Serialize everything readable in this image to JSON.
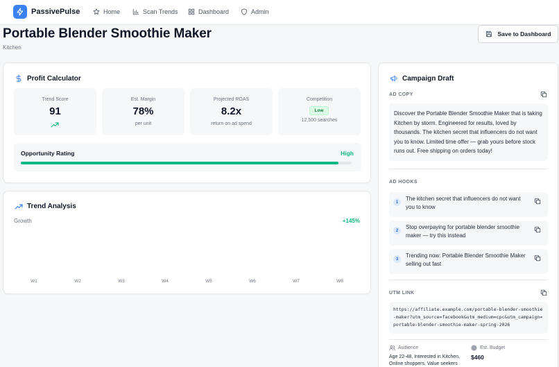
{
  "app": {
    "name": "PassivePulse",
    "accent": "#3b82f6"
  },
  "nav": {
    "items": [
      {
        "label": "Home",
        "icon": "home-icon"
      },
      {
        "label": "Scan Trends",
        "icon": "bar-chart-icon"
      },
      {
        "label": "Dashboard",
        "icon": "dashboard-icon"
      },
      {
        "label": "Admin",
        "icon": "shield-icon"
      }
    ]
  },
  "header": {
    "title": "Portable Blender Smoothie Maker",
    "category": "Kitchen",
    "save_label": "Save to Dashboard"
  },
  "profit": {
    "title": "Profit Calculator",
    "metrics": [
      {
        "label": "Trend Score",
        "value": "91"
      },
      {
        "label": "Est. Margin",
        "value": "78%",
        "sub": "per unit"
      },
      {
        "label": "Projected ROAS",
        "value": "8.2x",
        "sub": "return on ad spend"
      },
      {
        "label": "Competition",
        "badge": "Low",
        "sub": "12,500 searches"
      }
    ],
    "opportunity": {
      "label": "Opportunity Rating",
      "value": "High",
      "fill_percent": 96,
      "color": "#10b981"
    }
  },
  "trend": {
    "title": "Trend Analysis",
    "growth_label": "Growth",
    "growth_value": "+145%",
    "weeks": [
      "W1",
      "W2",
      "W3",
      "W4",
      "W5",
      "W6",
      "W7",
      "W8"
    ]
  },
  "campaign": {
    "title": "Campaign Draft",
    "ad_copy_label": "AD COPY",
    "ad_copy": "Discover the Portable Blender Smoothie Maker that is taking Kitchen by storm. Engineered for results, loved by thousands. The kitchen secret that influencers do not want you to know. Limited time offer — grab yours before stock runs out. Free shipping on orders today!",
    "hooks_label": "AD HOOKS",
    "hooks": [
      {
        "num": "1",
        "text": "The kitchen secret that influencers do not want you to know"
      },
      {
        "num": "2",
        "text": "Stop overpaying for portable blender smoothie maker — try this instead"
      },
      {
        "num": "3",
        "text": "Trending now: Portable Blender Smoothie Maker selling out fast"
      }
    ],
    "utm_label": "UTM LINK",
    "utm": "https://affiliate.example.com/portable-blender-smoothie-maker?utm_source=facebook&utm_medium=cpc&utm_campaign=portable-blender-smoothie-maker-spring-2026",
    "audience_label": "Audience",
    "audience": "Age 22-48, Interested in Kitchen, Online shoppers, Value seekers",
    "budget_label": "Est. Budget",
    "budget": "$460"
  }
}
